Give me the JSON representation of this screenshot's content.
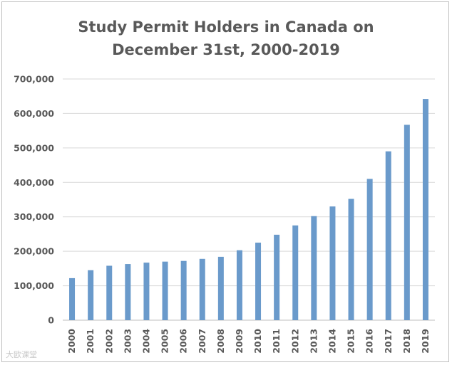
{
  "chart_data": {
    "type": "bar",
    "title": [
      "Study Permit Holders in Canada on",
      "December 31st, 2000-2019"
    ],
    "xlabel": "",
    "ylabel": "",
    "categories": [
      "2000",
      "2001",
      "2002",
      "2003",
      "2004",
      "2005",
      "2006",
      "2007",
      "2008",
      "2009",
      "2010",
      "2011",
      "2012",
      "2013",
      "2014",
      "2015",
      "2016",
      "2017",
      "2018",
      "2019"
    ],
    "values": [
      122000,
      145000,
      158000,
      163000,
      167000,
      170000,
      172000,
      178000,
      184000,
      203000,
      225000,
      248000,
      275000,
      302000,
      330000,
      352000,
      410000,
      490000,
      567000,
      642000
    ],
    "ylim": [
      0,
      700000
    ],
    "yticks": [
      0,
      100000,
      200000,
      300000,
      400000,
      500000,
      600000,
      700000
    ],
    "ytick_labels": [
      "0",
      "100,000",
      "200,000",
      "300,000",
      "400,000",
      "500,000",
      "600,000",
      "700,000"
    ],
    "grid": true,
    "bar_color": "#6a9acb",
    "grid_color": "#d9d9d9"
  },
  "watermark": "大欧课堂"
}
